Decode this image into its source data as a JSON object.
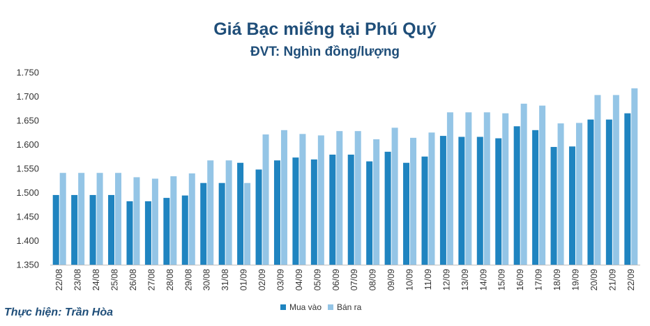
{
  "header": {
    "title": "Giá Bạc miếng tại Phú Quý",
    "subtitle": "ĐVT: Nghìn đồng/lượng"
  },
  "footer": {
    "credit": "Thực hiện: Trần Hòa"
  },
  "colors": {
    "buy": "#1f84c0",
    "sell": "#94c5e6",
    "title": "#1f4e79"
  },
  "chart_data": {
    "type": "bar",
    "title": "Giá Bạc miếng tại Phú Quý",
    "subtitle": "ĐVT: Nghìn đồng/lượng",
    "categories": [
      "22/08",
      "23/08",
      "24/08",
      "25/08",
      "26/08",
      "27/08",
      "28/08",
      "29/08",
      "30/08",
      "31/08",
      "01/09",
      "02/09",
      "03/09",
      "04/09",
      "05/09",
      "06/09",
      "07/09",
      "08/09",
      "09/09",
      "10/09",
      "11/09",
      "12/09",
      "13/09",
      "14/09",
      "15/09",
      "16/09",
      "17/09",
      "18/09",
      "19/09",
      "20/09",
      "21/09",
      "22/09"
    ],
    "series": [
      {
        "name": "Mua vào",
        "values": [
          1495,
          1495,
          1495,
          1495,
          1482,
          1482,
          1489,
          1494,
          1520,
          1520,
          1562,
          1548,
          1567,
          1573,
          1569,
          1579,
          1579,
          1565,
          1585,
          1562,
          1575,
          1618,
          1616,
          1616,
          1613,
          1638,
          1630,
          1595,
          1596,
          1652,
          1652,
          1665
        ]
      },
      {
        "name": "Bán ra",
        "values": [
          1541,
          1541,
          1541,
          1541,
          1532,
          1529,
          1534,
          1540,
          1567,
          1567,
          1520,
          1621,
          1630,
          1622,
          1619,
          1628,
          1628,
          1611,
          1635,
          1614,
          1625,
          1667,
          1667,
          1667,
          1665,
          1685,
          1681,
          1644,
          1645,
          1703,
          1703,
          1717
        ]
      }
    ],
    "yticks": [
      "1.350",
      "1.400",
      "1.450",
      "1.500",
      "1.550",
      "1.600",
      "1.650",
      "1.700",
      "1.750"
    ],
    "ylim": [
      1350,
      1750
    ],
    "grid": false,
    "legend_position": "bottom"
  }
}
